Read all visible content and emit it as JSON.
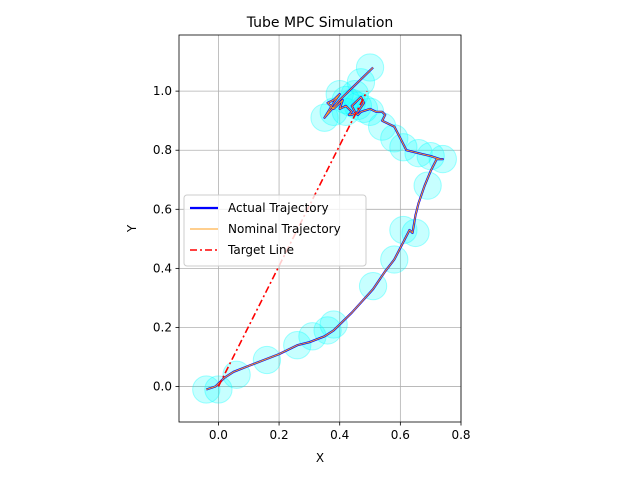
{
  "chart_data": {
    "type": "line",
    "title": "Tube MPC Simulation",
    "xlabel": "X",
    "ylabel": "Y",
    "xlim": [
      -0.13,
      0.8
    ],
    "ylim": [
      -0.12,
      1.19
    ],
    "xticks": [
      "0.0",
      "0.2",
      "0.4",
      "0.6",
      "0.8"
    ],
    "xtick_values": [
      0.0,
      0.2,
      0.4,
      0.6,
      0.8
    ],
    "yticks": [
      "0.0",
      "0.2",
      "0.4",
      "0.6",
      "0.8",
      "1.0"
    ],
    "ytick_values": [
      0.0,
      0.2,
      0.4,
      0.6,
      0.8,
      1.0
    ],
    "grid": true,
    "legend_position": "center-left",
    "tube_color": "#00ffff",
    "series": [
      {
        "name": "Actual Trajectory",
        "color": "#0000ff",
        "x": [
          -0.04,
          -0.01,
          0.02,
          0.05,
          0.1,
          0.15,
          0.2,
          0.26,
          0.3,
          0.35,
          0.38,
          0.44,
          0.51,
          0.55,
          0.58,
          0.6,
          0.63,
          0.64,
          0.65,
          0.66,
          0.68,
          0.7,
          0.72,
          0.74,
          0.73,
          0.7,
          0.66,
          0.62,
          0.6,
          0.58,
          0.54,
          0.55,
          0.54,
          0.52,
          0.5,
          0.47,
          0.46,
          0.45,
          0.44,
          0.45,
          0.46,
          0.47,
          0.48,
          0.46,
          0.44,
          0.43,
          0.44,
          0.42,
          0.4,
          0.41,
          0.38,
          0.36,
          0.38,
          0.4,
          0.38,
          0.35,
          0.4,
          0.45,
          0.51
        ],
        "y": [
          -0.01,
          0.0,
          0.03,
          0.05,
          0.07,
          0.09,
          0.11,
          0.14,
          0.15,
          0.17,
          0.19,
          0.25,
          0.33,
          0.39,
          0.43,
          0.47,
          0.53,
          0.52,
          0.58,
          0.62,
          0.68,
          0.73,
          0.77,
          0.77,
          0.77,
          0.78,
          0.79,
          0.8,
          0.84,
          0.88,
          0.9,
          0.92,
          0.93,
          0.93,
          0.94,
          0.93,
          0.92,
          0.93,
          0.95,
          0.96,
          0.97,
          0.98,
          0.96,
          0.93,
          0.92,
          0.92,
          0.93,
          0.95,
          0.94,
          0.97,
          0.94,
          0.96,
          0.97,
          0.99,
          0.96,
          0.91,
          0.97,
          1.02,
          1.08
        ]
      },
      {
        "name": "Nominal Trajectory",
        "color": "#ff9f1c",
        "x": [
          -0.04,
          -0.01,
          0.02,
          0.05,
          0.1,
          0.15,
          0.2,
          0.26,
          0.3,
          0.35,
          0.38,
          0.44,
          0.51,
          0.55,
          0.58,
          0.6,
          0.63,
          0.64,
          0.65,
          0.66,
          0.68,
          0.7,
          0.72,
          0.74,
          0.73,
          0.7,
          0.66,
          0.62,
          0.6,
          0.58,
          0.54,
          0.55,
          0.54,
          0.52,
          0.5,
          0.47,
          0.46,
          0.45,
          0.44,
          0.45,
          0.46,
          0.47,
          0.48,
          0.46,
          0.44,
          0.43,
          0.44,
          0.42,
          0.4,
          0.41,
          0.38,
          0.36,
          0.38,
          0.4,
          0.38,
          0.35,
          0.4,
          0.45,
          0.51
        ],
        "y": [
          -0.01,
          0.0,
          0.03,
          0.05,
          0.07,
          0.09,
          0.11,
          0.14,
          0.15,
          0.17,
          0.19,
          0.25,
          0.33,
          0.39,
          0.43,
          0.47,
          0.53,
          0.52,
          0.58,
          0.62,
          0.68,
          0.73,
          0.77,
          0.77,
          0.77,
          0.78,
          0.79,
          0.8,
          0.84,
          0.88,
          0.9,
          0.92,
          0.93,
          0.93,
          0.94,
          0.93,
          0.92,
          0.93,
          0.95,
          0.96,
          0.97,
          0.98,
          0.96,
          0.93,
          0.92,
          0.92,
          0.93,
          0.95,
          0.94,
          0.97,
          0.94,
          0.96,
          0.97,
          0.99,
          0.96,
          0.91,
          0.97,
          1.02,
          1.08
        ]
      },
      {
        "name": "Target Line",
        "color": "#ff0000",
        "x": [
          0.0,
          0.49
        ],
        "y": [
          0.0,
          1.0
        ]
      }
    ],
    "tubes": {
      "x": [
        -0.04,
        0.0,
        0.06,
        0.16,
        0.26,
        0.31,
        0.36,
        0.38,
        0.51,
        0.58,
        0.61,
        0.65,
        0.69,
        0.74,
        0.7,
        0.66,
        0.61,
        0.58,
        0.54,
        0.5,
        0.46,
        0.42,
        0.4,
        0.38,
        0.35,
        0.42,
        0.45,
        0.5,
        0.47,
        0.44,
        0.48
      ],
      "y": [
        -0.01,
        -0.01,
        0.04,
        0.09,
        0.14,
        0.17,
        0.19,
        0.21,
        0.34,
        0.43,
        0.53,
        0.52,
        0.68,
        0.77,
        0.78,
        0.79,
        0.81,
        0.84,
        0.88,
        0.93,
        0.95,
        0.93,
        0.99,
        0.93,
        0.91,
        0.97,
        0.99,
        1.08,
        1.03,
        0.96,
        0.94
      ]
    }
  }
}
